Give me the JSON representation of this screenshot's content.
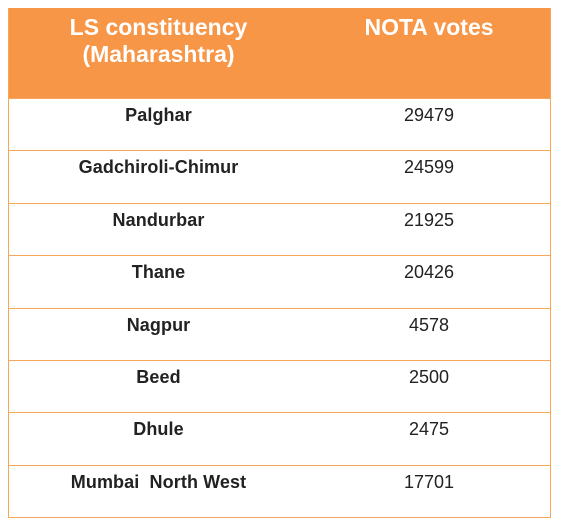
{
  "chart_data": {
    "type": "table",
    "columns": [
      "LS constituency (Maharashtra)",
      "NOTA votes"
    ],
    "header": {
      "col1_line1": "LS constituency",
      "col1_line2": "(Maharashtra)",
      "col2": "NOTA votes"
    },
    "rows": [
      {
        "constituency": "Palghar",
        "votes": "29479"
      },
      {
        "constituency": "Gadchiroli-Chimur",
        "votes": "24599"
      },
      {
        "constituency": "Nandurbar",
        "votes": "21925"
      },
      {
        "constituency": "Thane",
        "votes": "20426"
      },
      {
        "constituency": "Nagpur",
        "votes": "4578"
      },
      {
        "constituency": "Beed",
        "votes": "2500"
      },
      {
        "constituency": "Dhule",
        "votes": "2475"
      },
      {
        "constituency": "Mumbai  North West",
        "votes": "17701"
      }
    ],
    "colors": {
      "header_bg": "#f79646",
      "border": "#f4a65a",
      "header_text": "#ffffff"
    }
  }
}
